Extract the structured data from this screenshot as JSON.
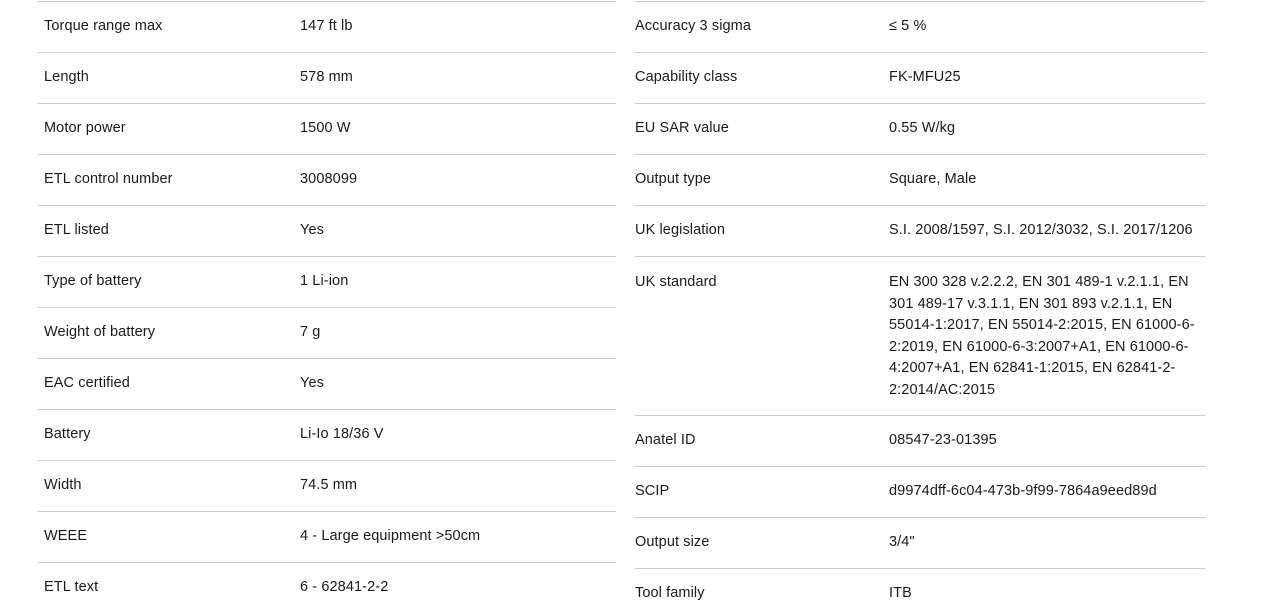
{
  "colors": {
    "background": "#ffffff",
    "text": "#1a1a1a",
    "divider": "#cccccc"
  },
  "spec_tables": {
    "left": {
      "rows": [
        {
          "label": "Torque range max",
          "value": "147 ft lb"
        },
        {
          "label": "Length",
          "value": "578 mm"
        },
        {
          "label": "Motor power",
          "value": "1500 W"
        },
        {
          "label": "ETL control number",
          "value": "3008099"
        },
        {
          "label": "ETL listed",
          "value": "Yes"
        },
        {
          "label": "Type of battery",
          "value": "1 Li-ion"
        },
        {
          "label": "Weight of battery",
          "value": "7 g"
        },
        {
          "label": "EAC certified",
          "value": "Yes"
        },
        {
          "label": "Battery",
          "value": "Li-Io 18/36 V"
        },
        {
          "label": "Width",
          "value": "74.5 mm"
        },
        {
          "label": "WEEE",
          "value": "4 - Large equipment >50cm"
        },
        {
          "label": "ETL text",
          "value": "6 - 62841-2-2"
        }
      ]
    },
    "right": {
      "rows": [
        {
          "label": "Accuracy 3 sigma",
          "value": "≤ 5 %"
        },
        {
          "label": "Capability class",
          "value": "FK-MFU25"
        },
        {
          "label": "EU SAR value",
          "value": "0.55 W/kg"
        },
        {
          "label": "Output type",
          "value": "Square, Male"
        },
        {
          "label": "UK legislation",
          "value": "S.I. 2008/1597, S.I. 2012/3032, S.I. 2017/1206"
        },
        {
          "label": "UK standard",
          "value": "EN 300 328 v.2.2.2, EN 301 489-1 v.2.1.1, EN 301 489-17 v.3.1.1, EN 301 893 v.2.1.1, EN 55014-1:2017, EN 55014-2:2015, EN 61000-6-2:2019, EN 61000-6-3:2007+A1, EN 61000-6-4:2007+A1, EN 62841-1:2015, EN 62841-2-2:2014/AC:2015",
          "tall": true
        },
        {
          "label": "Anatel ID",
          "value": "08547-23-01395"
        },
        {
          "label": "SCIP",
          "value": "d9974dff-6c04-473b-9f99-7864a9eed89d"
        },
        {
          "label": "Output size",
          "value": "3/4\""
        },
        {
          "label": "Tool family",
          "value": "ITB"
        }
      ]
    }
  }
}
